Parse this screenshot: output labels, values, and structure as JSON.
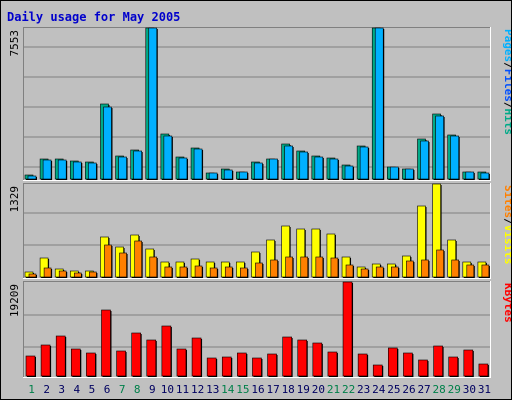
{
  "title": "Daily usage for May 2005",
  "colors": {
    "title": "#0000cc",
    "pages": "#00aa88",
    "files": "#0050ff",
    "hits": "#00b0ff",
    "visits": "#ffff00",
    "sites": "#ff8000",
    "kbytes": "#ff0000",
    "weekend": "#00804a",
    "weekday": "#000060",
    "panel": "#c0c0c0"
  },
  "chart_data": [
    {
      "type": "bar",
      "name_label_parts": [
        "Pages",
        "/",
        "Files",
        "/",
        "Hits"
      ],
      "ymax_label": "7553",
      "ylim": [
        0,
        7553
      ],
      "categories": [
        "1",
        "2",
        "3",
        "4",
        "5",
        "6",
        "7",
        "8",
        "9",
        "10",
        "11",
        "12",
        "13",
        "14",
        "15",
        "16",
        "17",
        "18",
        "19",
        "20",
        "21",
        "22",
        "23",
        "24",
        "25",
        "26",
        "27",
        "28",
        "29",
        "30",
        "31"
      ],
      "series": [
        {
          "name": "Hits",
          "values": [
            180,
            980,
            1010,
            890,
            840,
            3730,
            1150,
            1470,
            7553,
            2240,
            1100,
            1570,
            300,
            490,
            350,
            830,
            1010,
            1730,
            1390,
            1150,
            1060,
            700,
            1640,
            7553,
            620,
            520,
            1990,
            3260,
            2220,
            360,
            330
          ]
        },
        {
          "name": "Files",
          "values": [
            160,
            940,
            960,
            850,
            800,
            3600,
            1100,
            1400,
            7553,
            2160,
            1060,
            1500,
            290,
            470,
            330,
            800,
            980,
            1660,
            1330,
            1100,
            1010,
            670,
            1580,
            7553,
            600,
            500,
            1920,
            3150,
            2140,
            350,
            320
          ]
        },
        {
          "name": "Pages",
          "values": [
            40,
            180,
            200,
            180,
            170,
            480,
            210,
            260,
            1200,
            330,
            200,
            260,
            60,
            90,
            70,
            160,
            190,
            320,
            250,
            210,
            200,
            130,
            280,
            1200,
            110,
            90,
            340,
            560,
            390,
            60,
            55
          ]
        }
      ]
    },
    {
      "type": "bar",
      "name_label_parts": [
        "Sites",
        "/",
        "Visits"
      ],
      "ymax_label": "1329",
      "ylim": [
        0,
        1329
      ],
      "categories": [
        "1",
        "2",
        "3",
        "4",
        "5",
        "6",
        "7",
        "8",
        "9",
        "10",
        "11",
        "12",
        "13",
        "14",
        "15",
        "16",
        "17",
        "18",
        "19",
        "20",
        "21",
        "22",
        "23",
        "24",
        "25",
        "26",
        "27",
        "28",
        "29",
        "30",
        "31"
      ],
      "series": [
        {
          "name": "Visits",
          "values": [
            70,
            270,
            110,
            90,
            80,
            570,
            430,
            600,
            400,
            210,
            210,
            260,
            220,
            220,
            220,
            360,
            530,
            730,
            680,
            690,
            610,
            290,
            150,
            180,
            180,
            300,
            1010,
            1329,
            530,
            220,
            220
          ]
        },
        {
          "name": "Sites",
          "values": [
            40,
            130,
            80,
            60,
            70,
            460,
            340,
            520,
            290,
            150,
            140,
            160,
            130,
            140,
            130,
            200,
            250,
            290,
            280,
            280,
            270,
            170,
            110,
            150,
            150,
            230,
            240,
            380,
            250,
            170,
            170
          ]
        }
      ]
    },
    {
      "type": "bar",
      "name_label_parts": [
        "KBytes"
      ],
      "ymax_label": "19209",
      "ylim": [
        0,
        19209
      ],
      "categories": [
        "1",
        "2",
        "3",
        "4",
        "5",
        "6",
        "7",
        "8",
        "9",
        "10",
        "11",
        "12",
        "13",
        "14",
        "15",
        "16",
        "17",
        "18",
        "19",
        "20",
        "21",
        "22",
        "23",
        "24",
        "25",
        "26",
        "27",
        "28",
        "29",
        "30",
        "31"
      ],
      "series": [
        {
          "name": "KBytes",
          "values": [
            4000,
            6400,
            8200,
            5500,
            4800,
            13400,
            5100,
            8700,
            7400,
            10200,
            5600,
            7800,
            3600,
            3900,
            4600,
            3700,
            4500,
            7900,
            7400,
            6700,
            5000,
            19209,
            4500,
            2300,
            5800,
            4800,
            3300,
            6100,
            3900,
            5300,
            2400
          ]
        }
      ]
    }
  ],
  "x_labels": [
    "1",
    "2",
    "3",
    "4",
    "5",
    "6",
    "7",
    "8",
    "9",
    "10",
    "11",
    "12",
    "13",
    "14",
    "15",
    "16",
    "17",
    "18",
    "19",
    "20",
    "21",
    "22",
    "23",
    "24",
    "25",
    "26",
    "27",
    "28",
    "29",
    "30",
    "31"
  ],
  "weekend_days": [
    "1",
    "7",
    "8",
    "14",
    "15",
    "21",
    "22",
    "28",
    "29"
  ]
}
